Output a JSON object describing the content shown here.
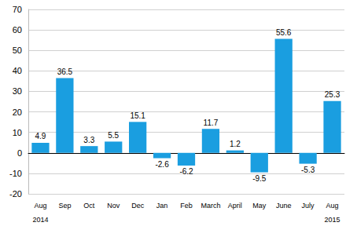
{
  "chart_data": {
    "type": "bar",
    "categories": [
      "Aug",
      "Sep",
      "Oct",
      "Nov",
      "Dec",
      "Jan",
      "Feb",
      "March",
      "April",
      "May",
      "June",
      "July",
      "Aug"
    ],
    "values": [
      4.9,
      36.5,
      3.3,
      5.5,
      15.1,
      -2.6,
      -6.2,
      11.7,
      1.2,
      -9.5,
      55.6,
      -5.3,
      25.3
    ],
    "color": "#1a9ee0",
    "ylim": [
      -20,
      70
    ],
    "yticks": [
      -20,
      -10,
      0,
      10,
      20,
      30,
      40,
      50,
      60,
      70
    ],
    "grid": true,
    "data_labels": true,
    "annotations": [
      {
        "text": "2014",
        "category_index": 0
      },
      {
        "text": "2015",
        "category_index": 12
      }
    ]
  }
}
